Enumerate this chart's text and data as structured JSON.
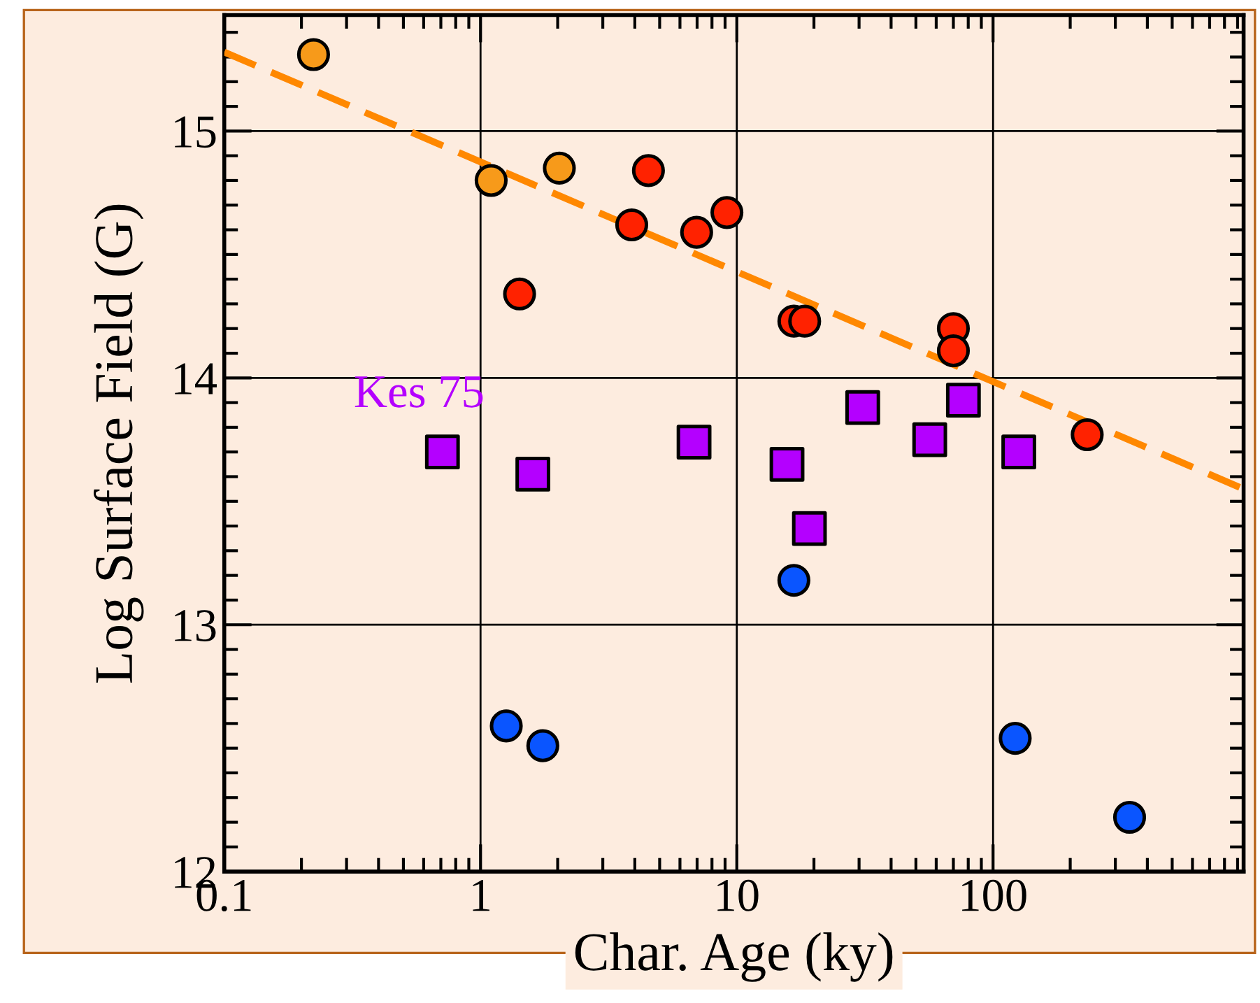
{
  "chart_data": {
    "type": "scatter",
    "xlabel": "Char. Age (ky)",
    "ylabel": "Log Surface Field (G)",
    "log": "x",
    "xlim": [
      0.1,
      950
    ],
    "xticks": [
      0.1,
      1,
      10,
      100
    ],
    "ylim": [
      12,
      15.47
    ],
    "yticks": [
      12,
      13,
      14,
      15
    ],
    "grid": true,
    "legend": false,
    "series": [
      {
        "color": "#f79a1a",
        "marker": "circle",
        "x": [
          0.223,
          1.1,
          2.03
        ],
        "values": [
          15.31,
          14.8,
          14.85
        ]
      },
      {
        "color": "#ff2200",
        "marker": "circle",
        "x": [
          4.52,
          3.89,
          6.97,
          9.15,
          1.42,
          16.7,
          18.4,
          70.0,
          70.0,
          233
        ],
        "values": [
          14.84,
          14.62,
          14.59,
          14.67,
          14.34,
          14.23,
          14.23,
          14.2,
          14.11,
          13.77
        ]
      },
      {
        "color": "#b400ff",
        "marker": "square",
        "x": [
          0.71,
          1.6,
          6.81,
          15.7,
          19.2,
          31.0,
          56.6,
          76.6,
          126
        ],
        "values": [
          13.7,
          13.61,
          13.74,
          13.65,
          13.39,
          13.88,
          13.75,
          13.91,
          13.7
        ]
      },
      {
        "color": "#0a55ff",
        "marker": "circle",
        "x": [
          16.7,
          1.26,
          1.75,
          122,
          341
        ],
        "values": [
          13.18,
          12.59,
          12.51,
          12.54,
          12.22
        ]
      },
      {
        "type": "line",
        "color": "#ff8800",
        "line_style": "dashed",
        "marker": "none",
        "x": [
          0.1,
          950
        ],
        "values": [
          15.32,
          13.55
        ]
      }
    ],
    "annotations": [
      {
        "text": "Kes 75",
        "x": 0.71,
        "y": 13.7
      }
    ]
  }
}
